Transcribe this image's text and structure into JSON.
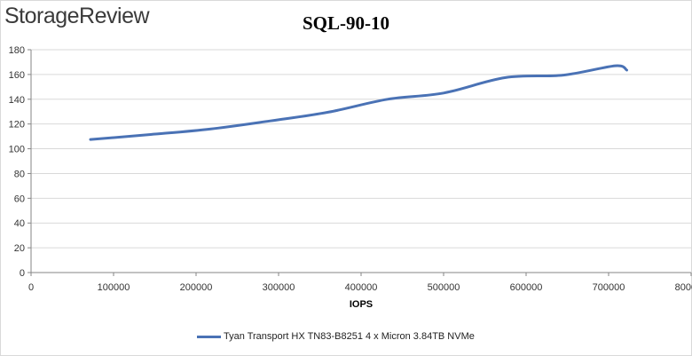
{
  "brand": "StorageReview",
  "chart_data": {
    "type": "line",
    "title": "SQL-90-10",
    "xlabel": "IOPS",
    "ylabel": "",
    "xlim": [
      0,
      800000
    ],
    "ylim": [
      0,
      180
    ],
    "xticks": [
      0,
      100000,
      200000,
      300000,
      400000,
      500000,
      600000,
      700000,
      800000
    ],
    "yticks": [
      0,
      20,
      40,
      60,
      80,
      100,
      120,
      140,
      160,
      180
    ],
    "grid": true,
    "legend_position": "bottom",
    "series": [
      {
        "name": "Tyan Transport HX TN83-B8251 4 x Micron 3.84TB NVMe",
        "color": "#4a72b5",
        "x": [
          72000,
          145000,
          218000,
          290000,
          360000,
          432000,
          500000,
          575000,
          645000,
          708000,
          722000
        ],
        "y": [
          107.5,
          111.5,
          116,
          122.5,
          129.5,
          140,
          145,
          157.5,
          159.5,
          167,
          163.5
        ]
      }
    ]
  }
}
